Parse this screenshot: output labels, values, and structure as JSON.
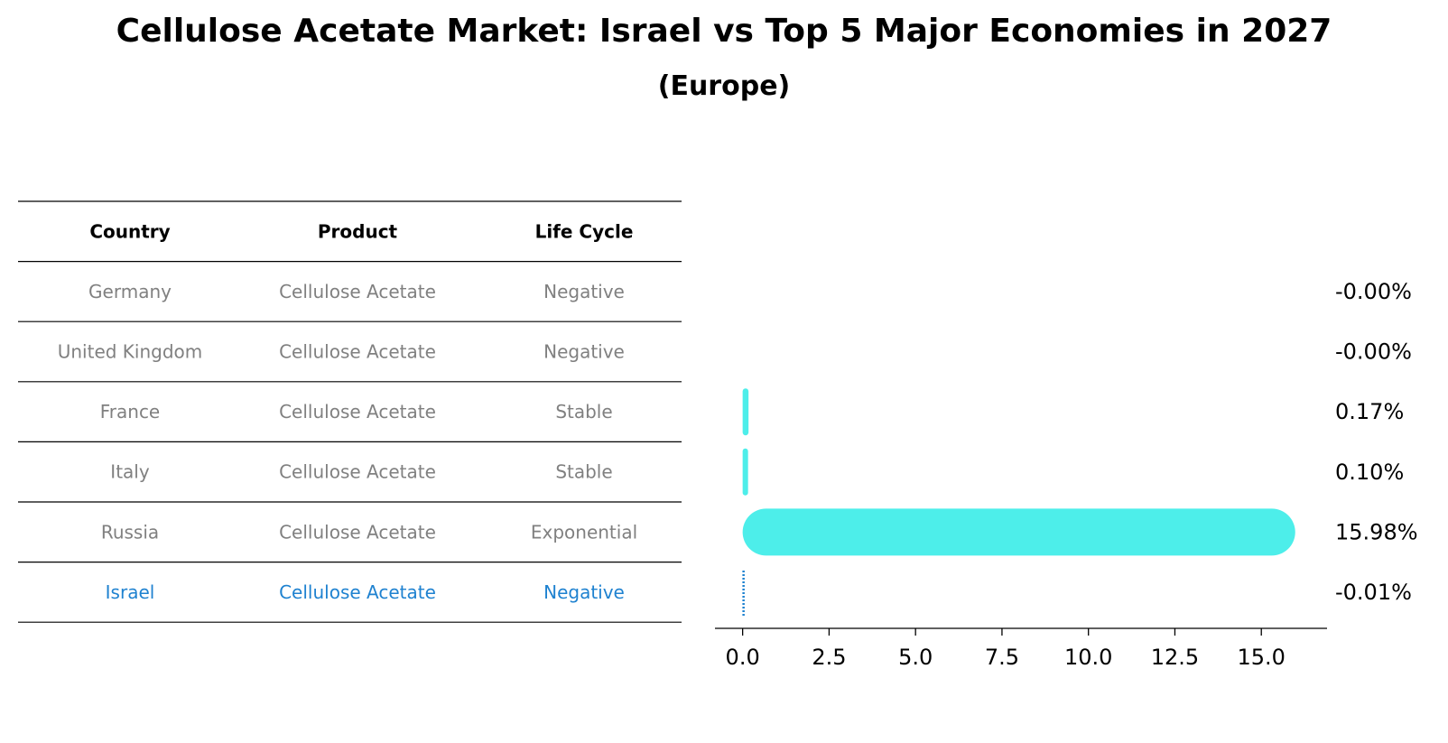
{
  "title": "Cellulose Acetate Market: Israel vs Top 5 Major Economies in 2027",
  "subtitle": "(Europe)",
  "colors": {
    "bar": "#4deeea",
    "highlight": "#1f82d0",
    "muted_text": "#808080",
    "line": "#000000"
  },
  "table": {
    "headers": [
      "Country",
      "Product",
      "Life Cycle"
    ],
    "rows": [
      {
        "country": "Germany",
        "product": "Cellulose Acetate",
        "life_cycle": "Negative",
        "highlight": false
      },
      {
        "country": "United Kingdom",
        "product": "Cellulose Acetate",
        "life_cycle": "Negative",
        "highlight": false
      },
      {
        "country": "France",
        "product": "Cellulose Acetate",
        "life_cycle": "Stable",
        "highlight": false
      },
      {
        "country": "Italy",
        "product": "Cellulose Acetate",
        "life_cycle": "Stable",
        "highlight": false
      },
      {
        "country": "Russia",
        "product": "Cellulose Acetate",
        "life_cycle": "Exponential",
        "highlight": false
      },
      {
        "country": "Israel",
        "product": "Cellulose Acetate",
        "life_cycle": "Negative",
        "highlight": true
      }
    ]
  },
  "chart_data": {
    "type": "bar",
    "orientation": "horizontal",
    "title": "Cellulose Acetate Market: Israel vs Top 5 Major Economies in 2027",
    "subtitle": "(Europe)",
    "categories": [
      "Germany",
      "United Kingdom",
      "France",
      "Italy",
      "Russia",
      "Israel"
    ],
    "values": [
      -0.001,
      -0.001,
      0.17,
      0.1,
      15.98,
      -0.01
    ],
    "value_labels": [
      "-0.00%",
      "-0.00%",
      "0.17%",
      "0.10%",
      "15.98%",
      "-0.01%"
    ],
    "highlight_category": "Israel",
    "xlim": [
      -0.8,
      16.9
    ],
    "xticks": [
      0.0,
      2.5,
      5.0,
      7.5,
      10.0,
      12.5,
      15.0
    ],
    "xtick_labels": [
      "0.0",
      "2.5",
      "5.0",
      "7.5",
      "10.0",
      "12.5",
      "15.0"
    ],
    "xlabel": "",
    "ylabel": "",
    "grid": false,
    "legend": "none"
  }
}
